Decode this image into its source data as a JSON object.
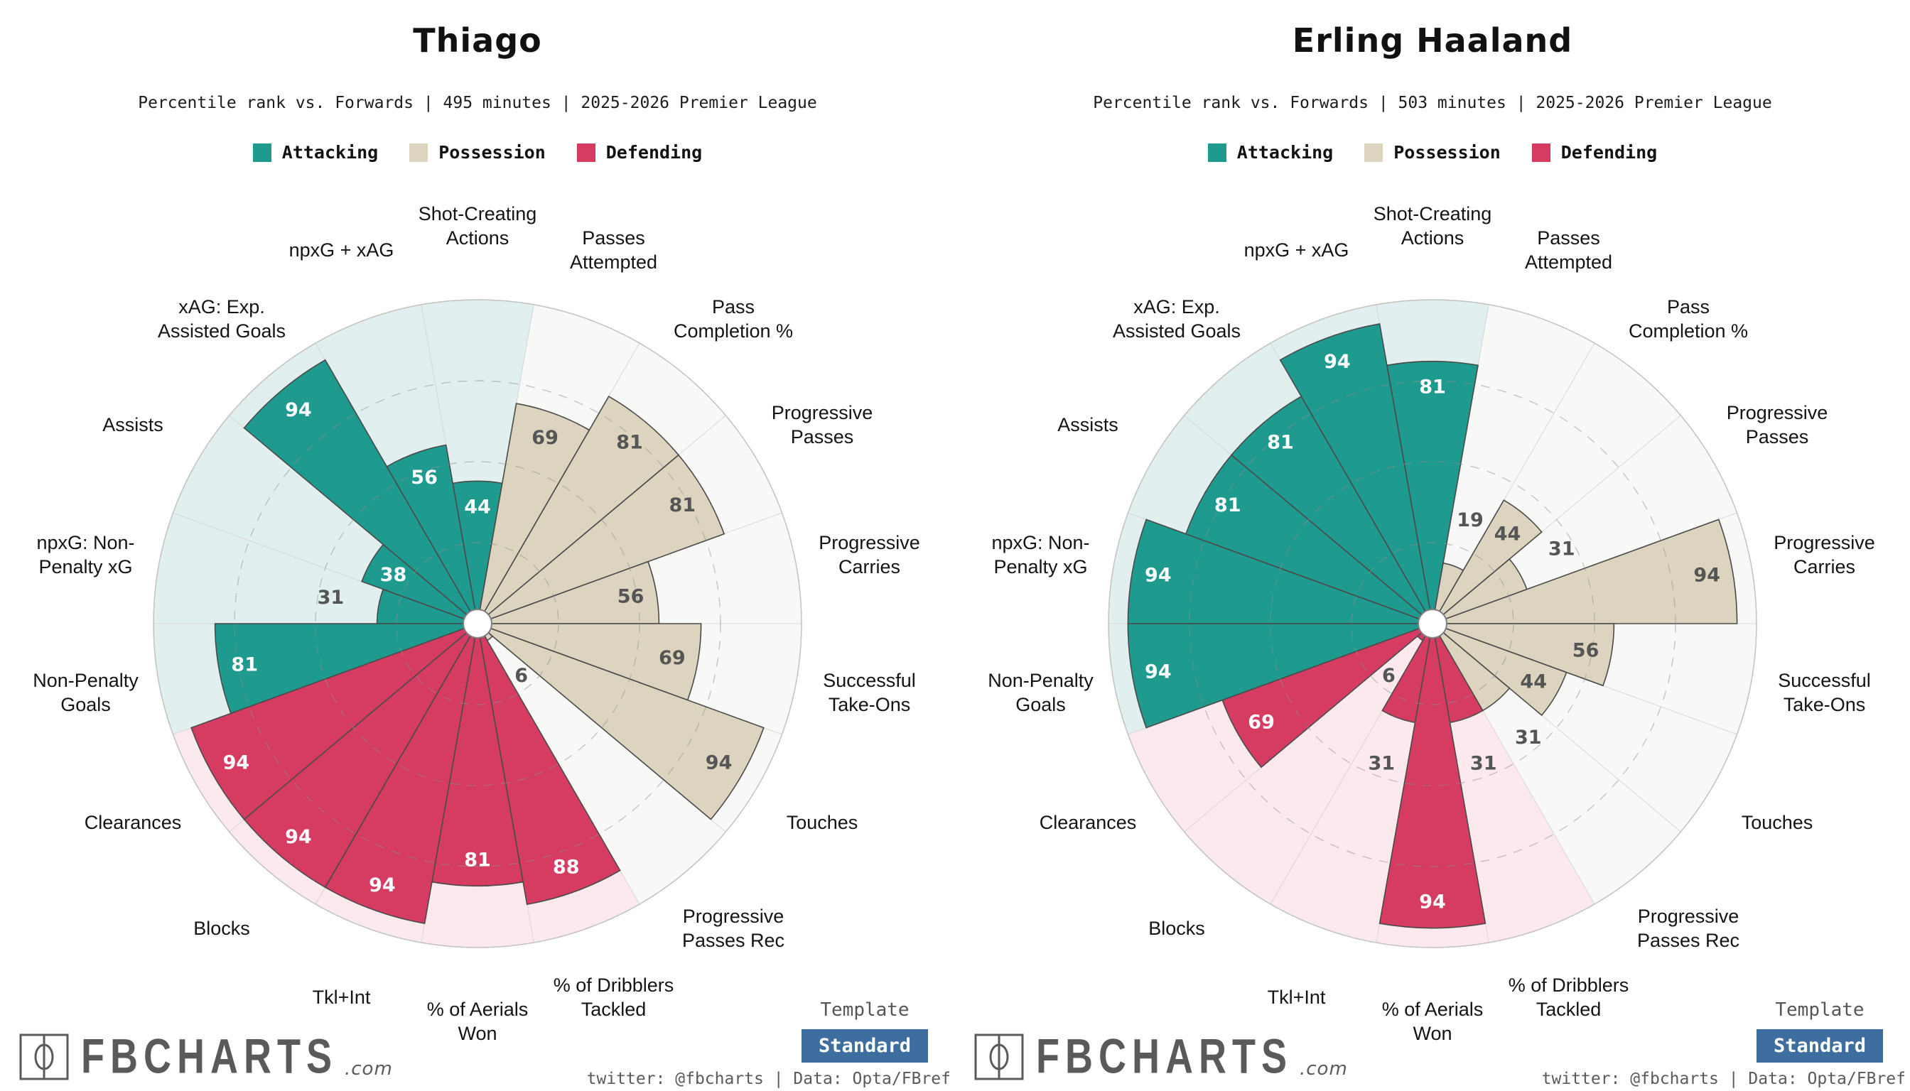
{
  "page": {
    "background": "#ffffff"
  },
  "categories": {
    "attacking": {
      "label": "Attacking",
      "fill": "#1f9a8f",
      "bg": "#e1efee"
    },
    "possession": {
      "label": "Possession",
      "fill": "#ddd4bf",
      "bg": "#f8f8f6"
    },
    "defending": {
      "label": "Defending",
      "fill": "#d63c62",
      "bg": "#fbe9ee"
    }
  },
  "legend_order": [
    "attacking",
    "possession",
    "defending"
  ],
  "footer": {
    "logo_text": "FBCHARTS",
    "logo_suffix": ".com",
    "template_label": "Template",
    "template_value": "Standard",
    "template_button_color": "#3d6e9f",
    "credit": "twitter: @fbcharts | Data: Opta/FBref"
  },
  "chart_data": [
    {
      "type": "pizza",
      "title": "Thiago",
      "subtitle": "Percentile rank vs. Forwards | 495 minutes | 2025-2026 Premier League",
      "max": 100,
      "rings_dashed": [
        25,
        50,
        75
      ],
      "slices": [
        {
          "label": "Shot-Creating\nActions",
          "category": "attacking",
          "value": 44
        },
        {
          "label": "Passes\nAttempted",
          "category": "possession",
          "value": 69
        },
        {
          "label": "Pass\nCompletion %",
          "category": "possession",
          "value": 81
        },
        {
          "label": "Progressive\nPasses",
          "category": "possession",
          "value": 81
        },
        {
          "label": "Progressive\nCarries",
          "category": "possession",
          "value": 56
        },
        {
          "label": "Successful\nTake-Ons",
          "category": "possession",
          "value": 69
        },
        {
          "label": "Touches",
          "category": "possession",
          "value": 94
        },
        {
          "label": "Progressive\nPasses Rec",
          "category": "possession",
          "value": 6
        },
        {
          "label": "% of Dribblers\nTackled",
          "category": "defending",
          "value": 88
        },
        {
          "label": "% of Aerials\nWon",
          "category": "defending",
          "value": 81
        },
        {
          "label": "Tkl+Int",
          "category": "defending",
          "value": 94
        },
        {
          "label": "Blocks",
          "category": "defending",
          "value": 94
        },
        {
          "label": "Clearances",
          "category": "defending",
          "value": 94
        },
        {
          "label": "Non-Penalty\nGoals",
          "category": "attacking",
          "value": 81
        },
        {
          "label": "npxG: Non-\nPenalty xG",
          "category": "attacking",
          "value": 31
        },
        {
          "label": "Assists",
          "category": "attacking",
          "value": 38
        },
        {
          "label": "xAG: Exp.\nAssisted Goals",
          "category": "attacking",
          "value": 94
        },
        {
          "label": "npxG + xAG",
          "category": "attacking",
          "value": 56
        }
      ]
    },
    {
      "type": "pizza",
      "title": "Erling Haaland",
      "subtitle": "Percentile rank vs. Forwards | 503 minutes | 2025-2026 Premier League",
      "max": 100,
      "rings_dashed": [
        25,
        50,
        75
      ],
      "slices": [
        {
          "label": "Shot-Creating\nActions",
          "category": "attacking",
          "value": 81
        },
        {
          "label": "Passes\nAttempted",
          "category": "possession",
          "value": 19
        },
        {
          "label": "Pass\nCompletion %",
          "category": "possession",
          "value": 44
        },
        {
          "label": "Progressive\nPasses",
          "category": "possession",
          "value": 31
        },
        {
          "label": "Progressive\nCarries",
          "category": "possession",
          "value": 94
        },
        {
          "label": "Successful\nTake-Ons",
          "category": "possession",
          "value": 56
        },
        {
          "label": "Touches",
          "category": "possession",
          "value": 44
        },
        {
          "label": "Progressive\nPasses Rec",
          "category": "possession",
          "value": 31
        },
        {
          "label": "% of Dribblers\nTackled",
          "category": "defending",
          "value": 31
        },
        {
          "label": "% of Aerials\nWon",
          "category": "defending",
          "value": 94
        },
        {
          "label": "Tkl+Int",
          "category": "defending",
          "value": 31
        },
        {
          "label": "Blocks",
          "category": "defending",
          "value": 6
        },
        {
          "label": "Clearances",
          "category": "defending",
          "value": 69
        },
        {
          "label": "Non-Penalty\nGoals",
          "category": "attacking",
          "value": 94
        },
        {
          "label": "npxG: Non-\nPenalty xG",
          "category": "attacking",
          "value": 94
        },
        {
          "label": "Assists",
          "category": "attacking",
          "value": 81
        },
        {
          "label": "xAG: Exp.\nAssisted Goals",
          "category": "attacking",
          "value": 81
        },
        {
          "label": "npxG + xAG",
          "category": "attacking",
          "value": 94
        }
      ]
    }
  ]
}
